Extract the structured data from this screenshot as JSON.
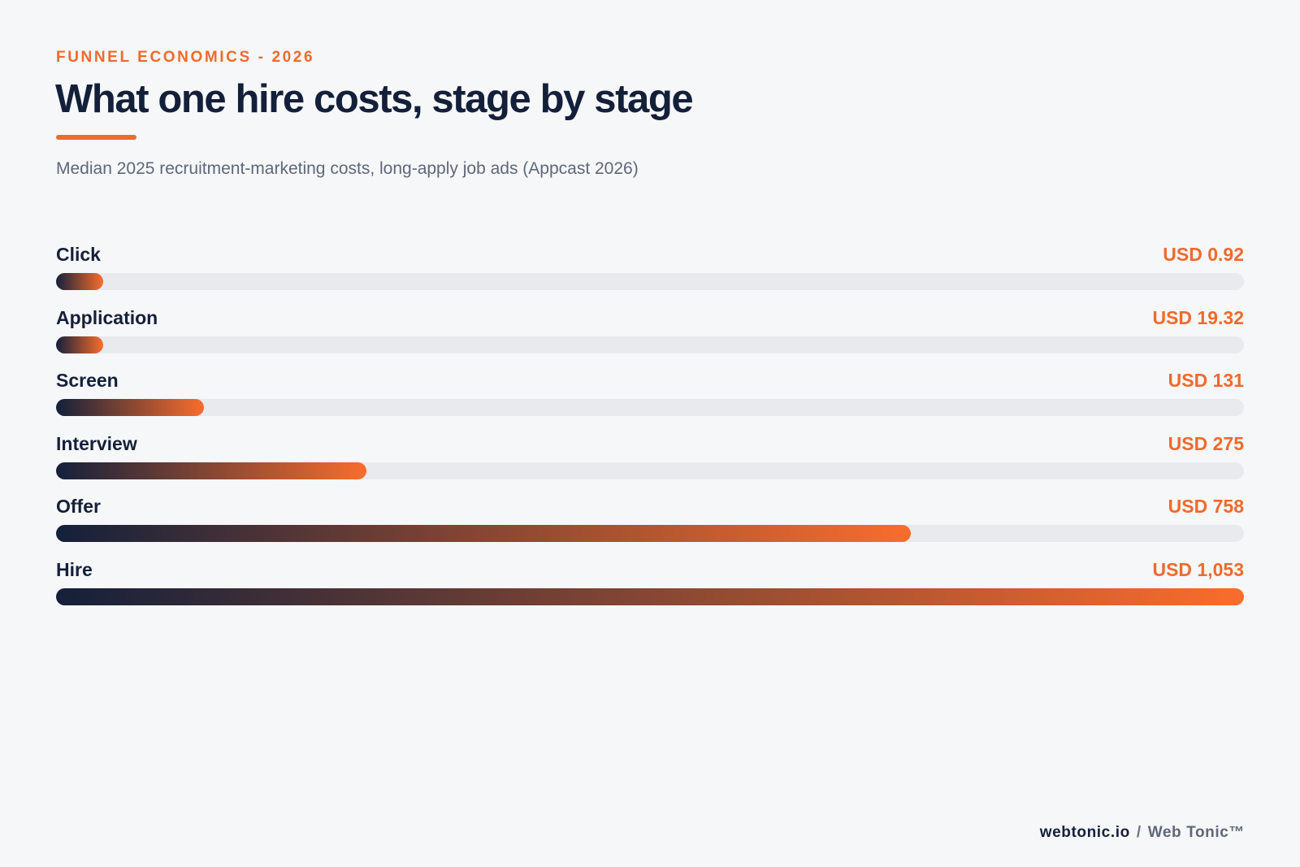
{
  "header": {
    "eyebrow": "FUNNEL ECONOMICS - 2026",
    "title": "What one hire costs, stage by stage",
    "subtitle": "Median 2025 recruitment-marketing costs, long-apply job ads (Appcast 2026)"
  },
  "colors": {
    "accent": "#f06a2c",
    "navy": "#14203a",
    "track": "#e8eaee",
    "background": "#f6f7f9"
  },
  "chart_data": {
    "type": "bar",
    "orientation": "horizontal",
    "categories": [
      "Click",
      "Application",
      "Screen",
      "Interview",
      "Offer",
      "Hire"
    ],
    "values": [
      0.92,
      19.32,
      131,
      275,
      758,
      1053
    ],
    "value_labels": [
      "USD 0.92",
      "USD 19.32",
      "USD 131",
      "USD 275",
      "USD 758",
      "USD 1,053"
    ],
    "unit": "USD",
    "xlim": [
      0,
      1053
    ],
    "min_bar_fraction": 0.04,
    "grid": false,
    "legend": "none"
  },
  "footer": {
    "site": "webtonic.io",
    "separator": "/",
    "brand": "Web Tonic™"
  }
}
